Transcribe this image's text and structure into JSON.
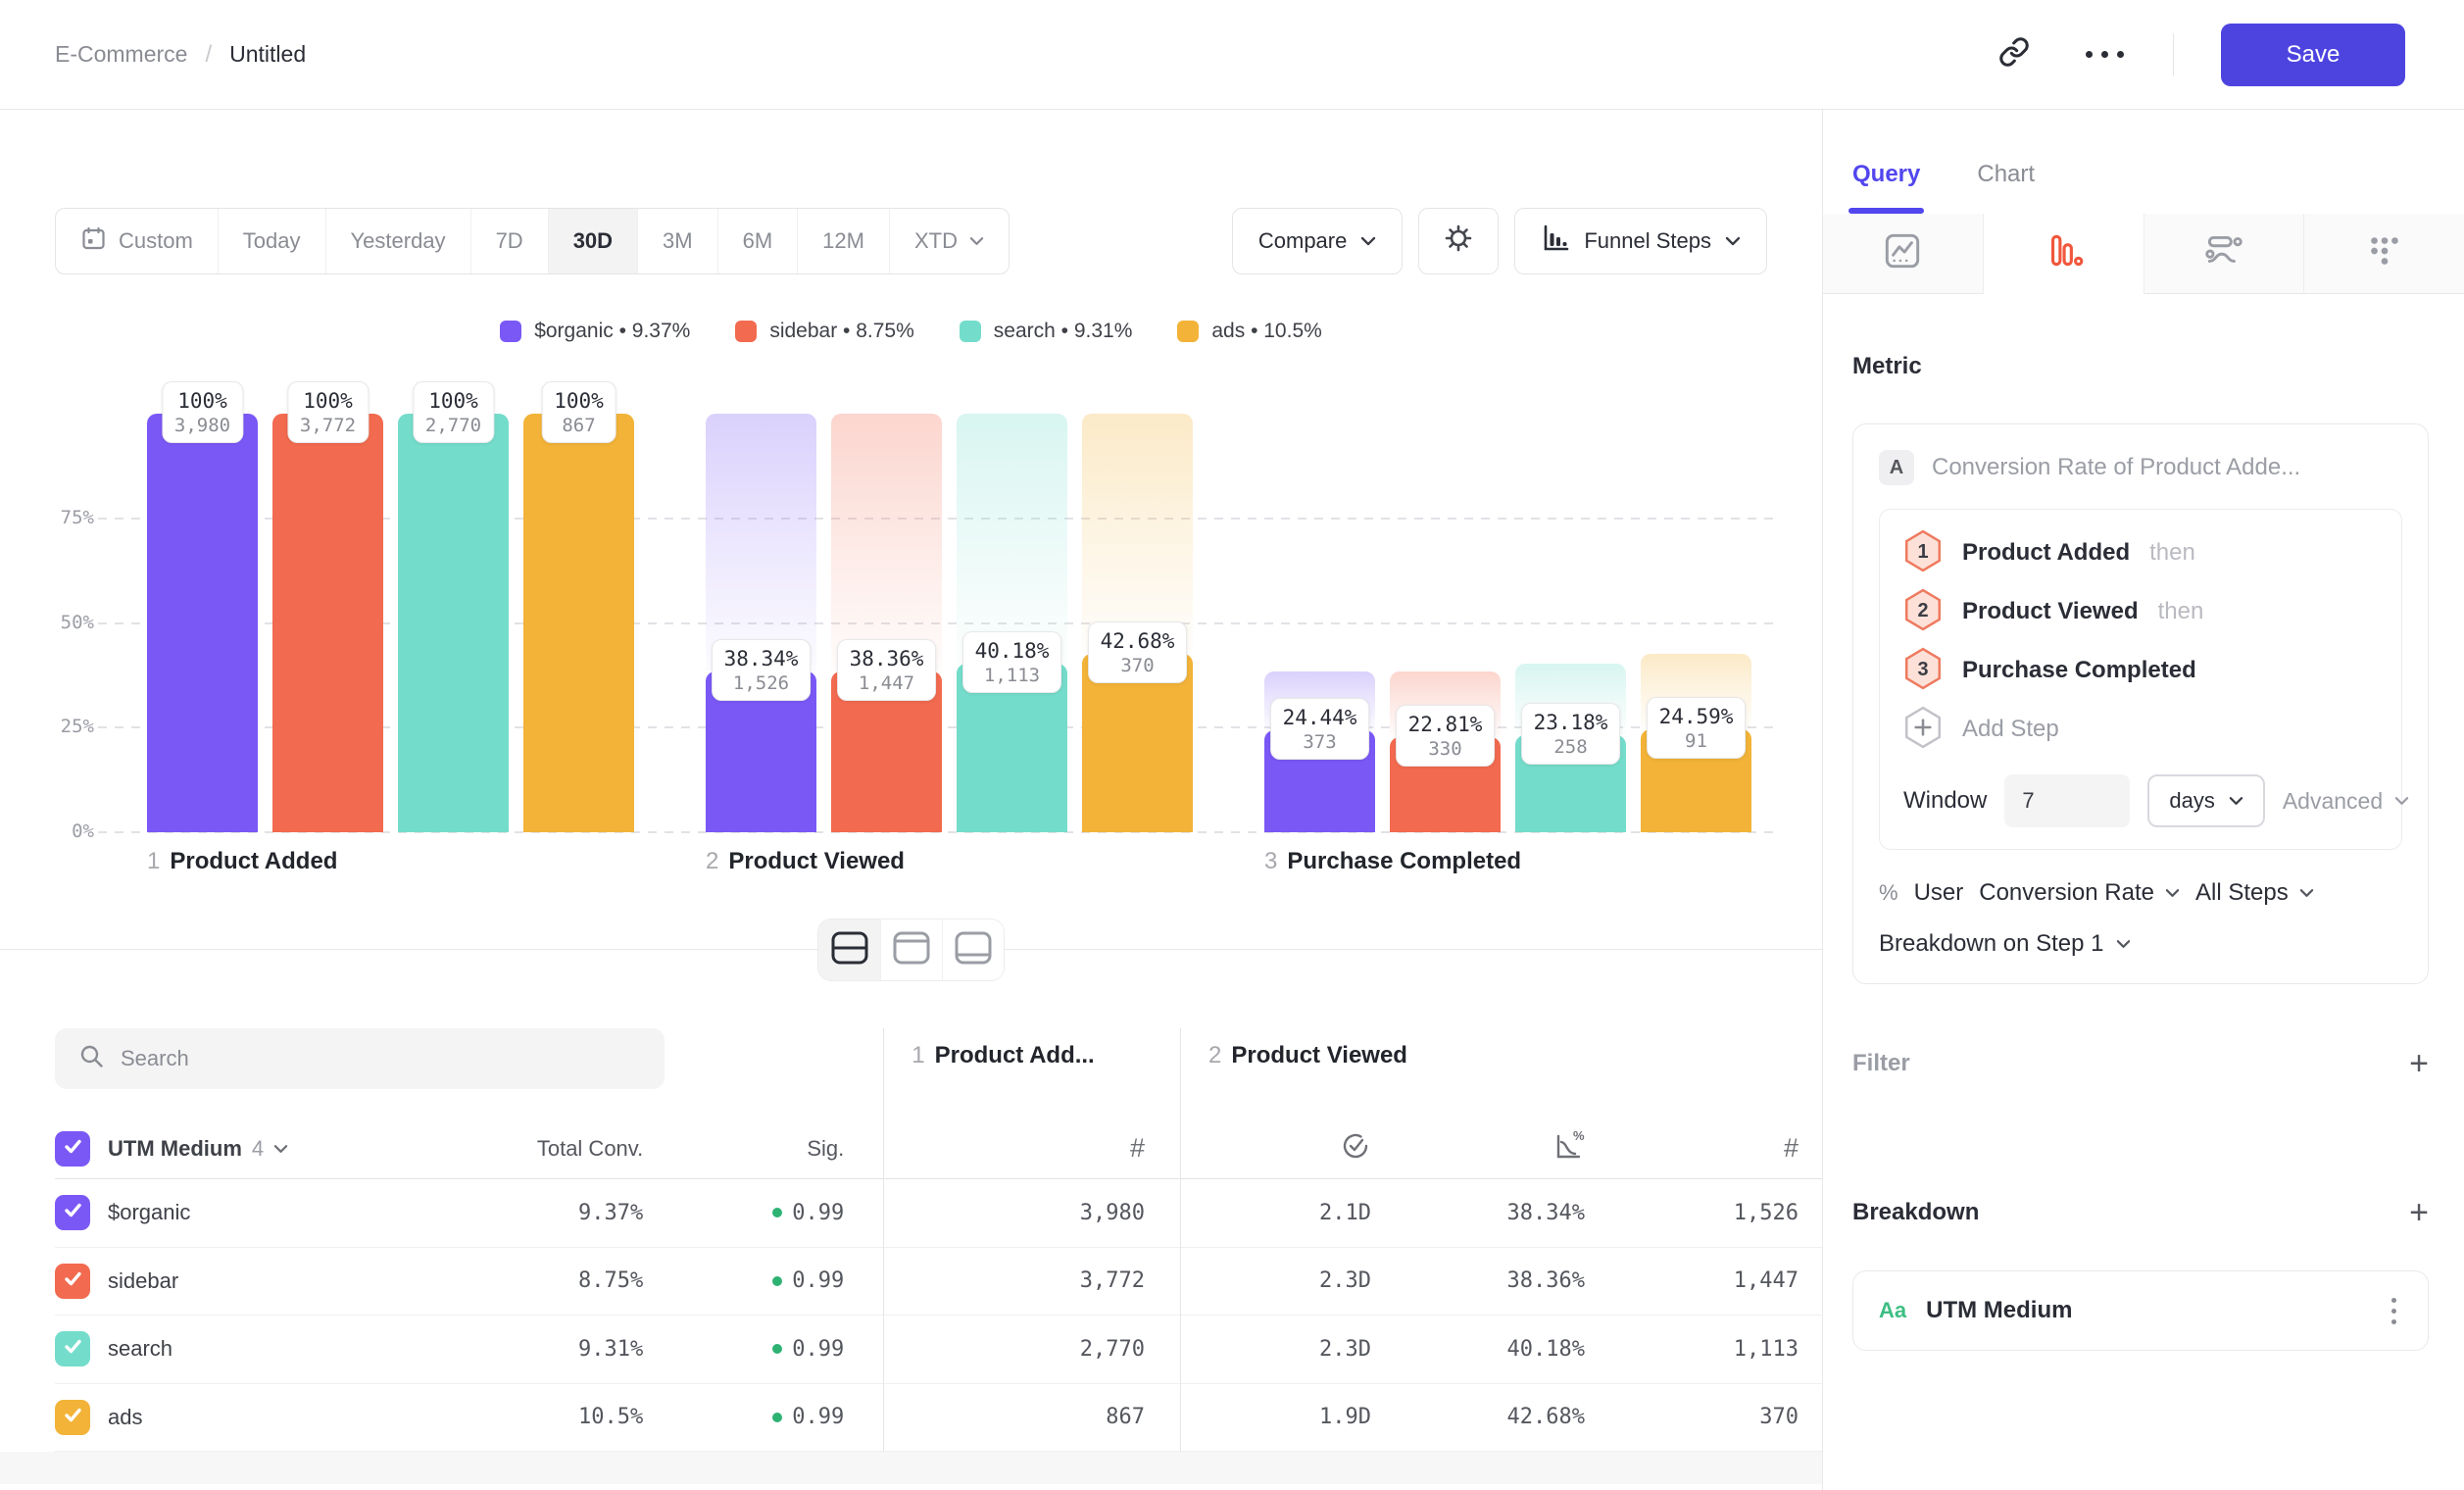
{
  "header": {
    "breadcrumb_project": "E-Commerce",
    "breadcrumb_separator": "/",
    "breadcrumb_current": "Untitled",
    "save_label": "Save"
  },
  "toolbar": {
    "ranges": [
      {
        "label": "Custom",
        "icon": "calendar"
      },
      {
        "label": "Today"
      },
      {
        "label": "Yesterday"
      },
      {
        "label": "7D"
      },
      {
        "label": "30D",
        "active": true
      },
      {
        "label": "3M"
      },
      {
        "label": "6M"
      },
      {
        "label": "12M"
      },
      {
        "label": "XTD",
        "chevron": true
      }
    ],
    "compare_label": "Compare",
    "chart_style_label": "Funnel Steps"
  },
  "legend_separator": "•",
  "chart_data": {
    "type": "bar",
    "subtype": "funnel-steps",
    "title": "",
    "categories": [
      "1 Product Added",
      "2 Product Viewed",
      "3 Purchase Completed"
    ],
    "steps": [
      {
        "num": "1",
        "label": "Product Added"
      },
      {
        "num": "2",
        "label": "Product Viewed"
      },
      {
        "num": "3",
        "label": "Purchase Completed"
      }
    ],
    "series": [
      {
        "name": "$organic",
        "color": "#7A58F6",
        "overall_conv": "9.37%",
        "pcts": [
          100,
          38.34,
          24.44
        ],
        "pct_labels": [
          "100%",
          "38.34%",
          "24.44%"
        ],
        "counts": [
          "3,980",
          "1,526",
          "373"
        ]
      },
      {
        "name": "sidebar",
        "color": "#F26A4F",
        "overall_conv": "8.75%",
        "pcts": [
          100,
          38.36,
          22.81
        ],
        "pct_labels": [
          "100%",
          "38.36%",
          "22.81%"
        ],
        "counts": [
          "3,772",
          "1,447",
          "330"
        ]
      },
      {
        "name": "search",
        "color": "#74DCCB",
        "overall_conv": "9.31%",
        "pcts": [
          100,
          40.18,
          23.18
        ],
        "pct_labels": [
          "100%",
          "40.18%",
          "23.18%"
        ],
        "counts": [
          "2,770",
          "1,113",
          "258"
        ]
      },
      {
        "name": "ads",
        "color": "#F2B338",
        "overall_conv": "10.5%",
        "pcts": [
          100,
          42.68,
          24.59
        ],
        "pct_labels": [
          "100%",
          "42.68%",
          "24.59%"
        ],
        "counts": [
          "867",
          "370",
          "91"
        ]
      }
    ],
    "yticks": [
      {
        "pct": 0,
        "label": "0%"
      },
      {
        "pct": 25,
        "label": "25%"
      },
      {
        "pct": 50,
        "label": "50%"
      },
      {
        "pct": 75,
        "label": "75%"
      }
    ],
    "ylim": [
      0,
      100
    ],
    "grid": "dashed-horizontal",
    "legend_position": "top-center"
  },
  "view_toggle": {
    "options": [
      "split-view",
      "top-panel-view",
      "bottom-panel-view"
    ],
    "active": "split-view"
  },
  "table": {
    "search_placeholder": "Search",
    "group_header": {
      "label": "UTM Medium",
      "count": "4"
    },
    "left_columns": {
      "total": "Total Conv.",
      "sig": "Sig."
    },
    "step_columns": [
      {
        "num": "1",
        "label": "Product Add...",
        "metrics": [
          "count"
        ]
      },
      {
        "num": "2",
        "label": "Product Viewed",
        "metrics": [
          "avg-time",
          "conversion",
          "count"
        ]
      }
    ],
    "sig_dot_color": "#2EB273",
    "rows": [
      {
        "name": "$organic",
        "color": "#7A58F6",
        "total_conv": "9.37%",
        "sig": "0.99",
        "step1_count": "3,980",
        "avg_time": "2.1D",
        "conv_rate": "38.34%",
        "step2_count": "1,526"
      },
      {
        "name": "sidebar",
        "color": "#F26A4F",
        "total_conv": "8.75%",
        "sig": "0.99",
        "step1_count": "3,772",
        "avg_time": "2.3D",
        "conv_rate": "38.36%",
        "step2_count": "1,447"
      },
      {
        "name": "search",
        "color": "#74DCCB",
        "total_conv": "9.31%",
        "sig": "0.99",
        "step1_count": "2,770",
        "avg_time": "2.3D",
        "conv_rate": "40.18%",
        "step2_count": "1,113"
      },
      {
        "name": "ads",
        "color": "#F2B338",
        "total_conv": "10.5%",
        "sig": "0.99",
        "step1_count": "867",
        "avg_time": "1.9D",
        "conv_rate": "42.68%",
        "step2_count": "370"
      }
    ]
  },
  "panel": {
    "tabs": [
      {
        "label": "Query",
        "active": true
      },
      {
        "label": "Chart"
      }
    ],
    "chart_types": [
      "line-chart",
      "funnel-chart",
      "flow-chart",
      "grid-chart"
    ],
    "active_chart_type": "funnel-chart",
    "accent_color": "#F1573C",
    "metric_heading": "Metric",
    "metric": {
      "badge": "A",
      "label": "Conversion Rate of Product Adde..."
    },
    "steps": [
      {
        "num": "1",
        "name": "Product Added",
        "suffix": "then"
      },
      {
        "num": "2",
        "name": "Product Viewed",
        "suffix": "then"
      },
      {
        "num": "3",
        "name": "Purchase Completed",
        "suffix": ""
      }
    ],
    "add_step_label": "Add Step",
    "window": {
      "label": "Window",
      "value": "7",
      "unit": "days",
      "advanced_label": "Advanced"
    },
    "measure": {
      "symbol": "%",
      "entity": "User",
      "metric": "Conversion Rate",
      "scope": "All Steps"
    },
    "breakdown_on_label": "Breakdown on Step 1",
    "filter": {
      "label": "Filter"
    },
    "breakdown": {
      "label": "Breakdown",
      "item": {
        "badge": "Aa",
        "name": "UTM Medium"
      }
    }
  }
}
